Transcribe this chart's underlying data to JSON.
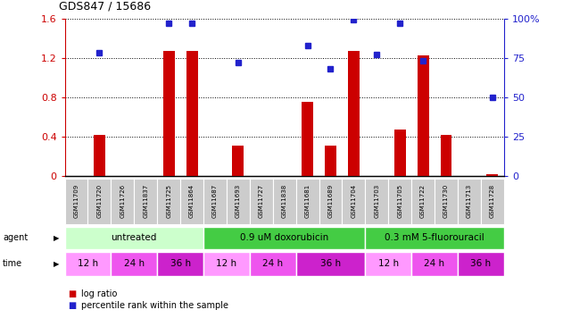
{
  "title": "GDS847 / 15686",
  "samples": [
    "GSM11709",
    "GSM11720",
    "GSM11726",
    "GSM11837",
    "GSM11725",
    "GSM11864",
    "GSM11687",
    "GSM11693",
    "GSM11727",
    "GSM11838",
    "GSM11681",
    "GSM11689",
    "GSM11704",
    "GSM11703",
    "GSM11705",
    "GSM11722",
    "GSM11730",
    "GSM11713",
    "GSM11728"
  ],
  "log_ratio": [
    0.0,
    0.42,
    0.0,
    0.0,
    1.27,
    1.27,
    0.0,
    0.31,
    0.0,
    0.0,
    0.75,
    0.31,
    1.27,
    0.0,
    0.47,
    1.22,
    0.42,
    0.0,
    0.02
  ],
  "percentile": [
    null,
    78,
    null,
    null,
    97,
    97,
    null,
    72,
    null,
    null,
    83,
    68,
    99,
    77,
    97,
    73,
    null,
    null,
    50
  ],
  "ylim_left": [
    0,
    1.6
  ],
  "ylim_right": [
    0,
    100
  ],
  "yticks_left": [
    0,
    0.4,
    0.8,
    1.2,
    1.6
  ],
  "ytick_labels_left": [
    "0",
    "0.4",
    "0.8",
    "1.2",
    "1.6"
  ],
  "yticks_right": [
    0,
    25,
    50,
    75,
    100
  ],
  "ytick_labels_right": [
    "0",
    "25",
    "50",
    "75",
    "100%"
  ],
  "bar_color": "#cc0000",
  "point_color": "#2222cc",
  "agent_groups": [
    {
      "label": "untreated",
      "start": 0,
      "end": 6,
      "color": "#ccffcc"
    },
    {
      "label": "0.9 uM doxorubicin",
      "start": 6,
      "end": 13,
      "color": "#44cc44"
    },
    {
      "label": "0.3 mM 5-fluorouracil",
      "start": 13,
      "end": 19,
      "color": "#44cc44"
    }
  ],
  "time_groups": [
    {
      "label": "12 h",
      "start": 0,
      "end": 2,
      "color": "#ff99ff"
    },
    {
      "label": "24 h",
      "start": 2,
      "end": 4,
      "color": "#ee55ee"
    },
    {
      "label": "36 h",
      "start": 4,
      "end": 6,
      "color": "#cc22cc"
    },
    {
      "label": "12 h",
      "start": 6,
      "end": 8,
      "color": "#ff99ff"
    },
    {
      "label": "24 h",
      "start": 8,
      "end": 10,
      "color": "#ee55ee"
    },
    {
      "label": "36 h",
      "start": 10,
      "end": 13,
      "color": "#cc22cc"
    },
    {
      "label": "12 h",
      "start": 13,
      "end": 15,
      "color": "#ff99ff"
    },
    {
      "label": "24 h",
      "start": 15,
      "end": 17,
      "color": "#ee55ee"
    },
    {
      "label": "36 h",
      "start": 17,
      "end": 19,
      "color": "#cc22cc"
    }
  ],
  "legend_log_ratio_color": "#cc0000",
  "legend_percentile_color": "#2222cc",
  "tick_color_left": "#cc0000",
  "tick_color_right": "#2222cc",
  "sample_label_bg": "#cccccc",
  "bg_color": "#ffffff"
}
